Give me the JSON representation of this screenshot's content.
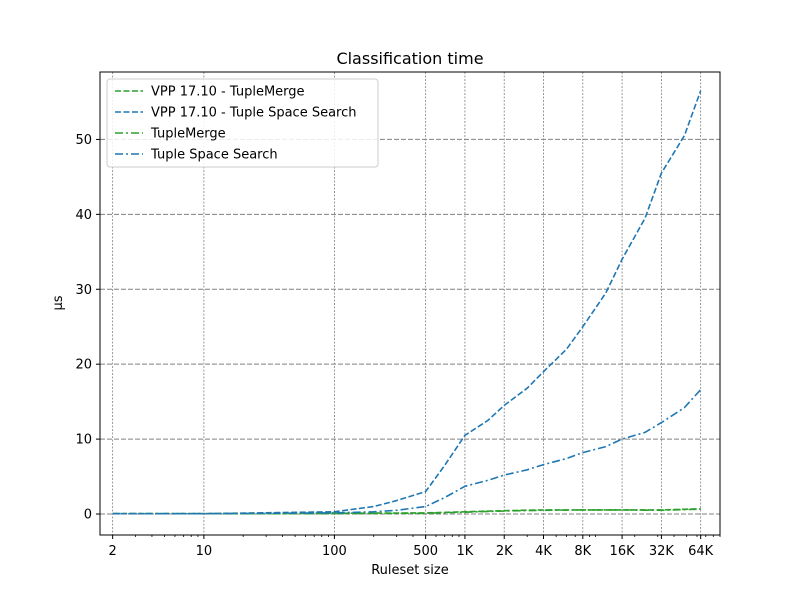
{
  "chart_data": {
    "type": "line",
    "title": "Classification time",
    "xlabel": "Ruleset size",
    "ylabel": "μs",
    "xscale": "log2",
    "xlim": [
      1.6,
      90000
    ],
    "ylim": [
      -2.8,
      59
    ],
    "grid": true,
    "legend_position": "top-left",
    "x_ticks": [
      {
        "value": 2,
        "label": "2"
      },
      {
        "value": 10,
        "label": "10"
      },
      {
        "value": 100,
        "label": "100"
      },
      {
        "value": 500,
        "label": "500"
      },
      {
        "value": 1000,
        "label": "1K"
      },
      {
        "value": 2000,
        "label": "2K"
      },
      {
        "value": 4000,
        "label": "4K"
      },
      {
        "value": 8000,
        "label": "8K"
      },
      {
        "value": 16000,
        "label": "16K"
      },
      {
        "value": 32000,
        "label": "32K"
      },
      {
        "value": 64000,
        "label": "64K"
      }
    ],
    "y_ticks": [
      0,
      10,
      20,
      30,
      40,
      50
    ],
    "series": [
      {
        "name": "VPP 17.10 - TupleMerge",
        "color": "#2ca02c",
        "dash": "dashed",
        "x": [
          2,
          10,
          100,
          500,
          1000,
          2000,
          4000,
          8000,
          16000,
          32000,
          64000
        ],
        "y": [
          0.05,
          0.05,
          0.1,
          0.15,
          0.3,
          0.45,
          0.55,
          0.55,
          0.55,
          0.55,
          0.7
        ]
      },
      {
        "name": "VPP 17.10 - Tuple Space Search",
        "color": "#1f77b4",
        "dash": "dashed",
        "x": [
          2,
          10,
          100,
          200,
          300,
          500,
          700,
          1000,
          1500,
          2000,
          3000,
          4000,
          6000,
          8000,
          12000,
          16000,
          24000,
          32000,
          48000,
          64000
        ],
        "y": [
          0.05,
          0.05,
          0.3,
          1.0,
          1.8,
          3.0,
          6.5,
          10.5,
          12.5,
          14.5,
          16.8,
          19.0,
          22.0,
          25.0,
          29.5,
          34.0,
          39.5,
          45.5,
          50.5,
          56.5
        ]
      },
      {
        "name": "TupleMerge",
        "color": "#2ca02c",
        "dash": "dashdot",
        "x": [
          2,
          10,
          100,
          500,
          1000,
          2000,
          4000,
          8000,
          16000,
          32000,
          64000
        ],
        "y": [
          0.05,
          0.05,
          0.05,
          0.1,
          0.25,
          0.4,
          0.5,
          0.55,
          0.55,
          0.5,
          0.65
        ]
      },
      {
        "name": "Tuple Space Search",
        "color": "#1f77b4",
        "dash": "dashdot",
        "x": [
          2,
          10,
          100,
          200,
          300,
          500,
          700,
          1000,
          1500,
          2000,
          3000,
          4000,
          6000,
          8000,
          12000,
          16000,
          24000,
          32000,
          48000,
          64000
        ],
        "y": [
          0.05,
          0.05,
          0.15,
          0.3,
          0.5,
          1.0,
          2.2,
          3.7,
          4.5,
          5.2,
          5.9,
          6.6,
          7.4,
          8.2,
          9.0,
          10.0,
          10.9,
          12.2,
          14.2,
          16.6
        ]
      }
    ]
  }
}
